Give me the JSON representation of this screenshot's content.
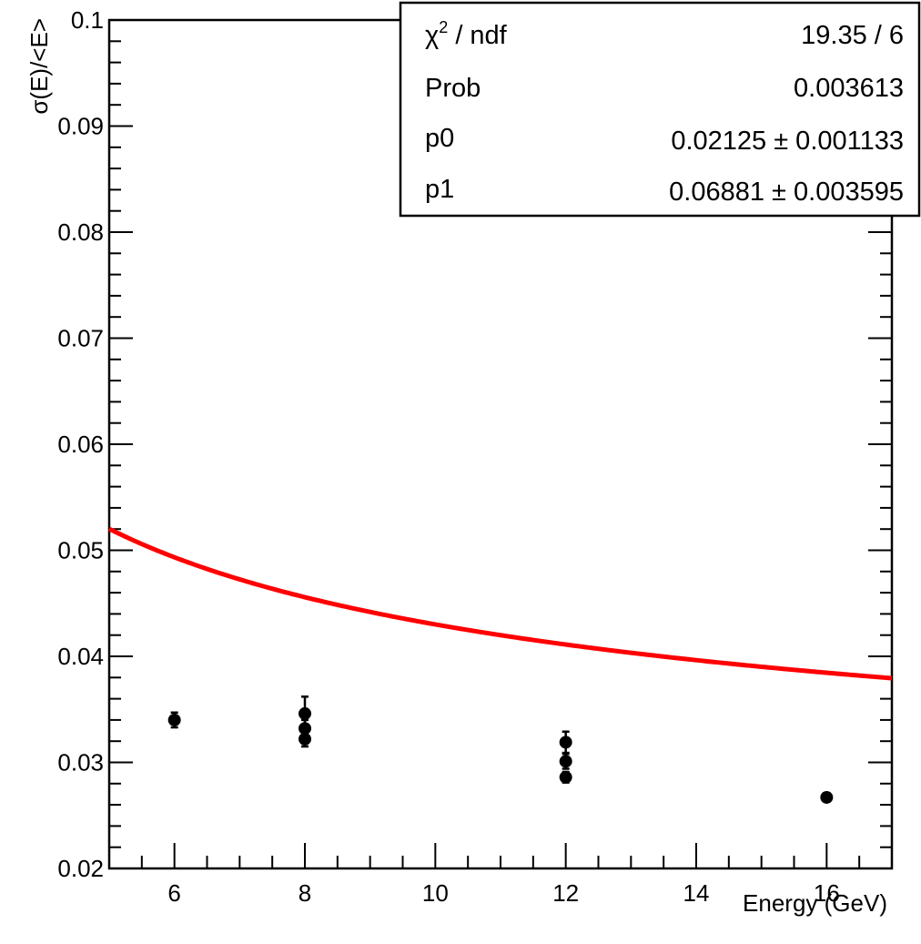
{
  "chart_data": {
    "type": "scatter",
    "title": "",
    "xlabel": "Energy (GeV)",
    "ylabel": "σ(E)/<E>",
    "xlim": [
      5,
      17
    ],
    "ylim": [
      0.02,
      0.1
    ],
    "x_ticks": [
      6,
      8,
      10,
      12,
      14,
      16
    ],
    "x_tick_labels": [
      "6",
      "8",
      "10",
      "12",
      "14",
      "16"
    ],
    "y_ticks": [
      0.02,
      0.03,
      0.04,
      0.05,
      0.06,
      0.07,
      0.08,
      0.09,
      0.1
    ],
    "y_tick_labels": [
      "0.02",
      "0.03",
      "0.04",
      "0.05",
      "0.06",
      "0.07",
      "0.08",
      "0.09",
      "0.1"
    ],
    "grid": false,
    "series": [
      {
        "kind": "points",
        "color": "#000000",
        "points": [
          {
            "x": 6,
            "y": 0.034,
            "err": 0.0007
          },
          {
            "x": 8,
            "y": 0.0346,
            "err": 0.0016
          },
          {
            "x": 8,
            "y": 0.0332,
            "err": 0.0008
          },
          {
            "x": 8,
            "y": 0.0322,
            "err": 0.0007
          },
          {
            "x": 12,
            "y": 0.0319,
            "err": 0.001
          },
          {
            "x": 12,
            "y": 0.0301,
            "err": 0.0007
          },
          {
            "x": 12,
            "y": 0.0286,
            "err": 0.0005
          },
          {
            "x": 16,
            "y": 0.0267,
            "err": 0.0004
          }
        ]
      },
      {
        "kind": "fit",
        "color": "#ff0000",
        "formula": "p0 + p1/sqrt(E)",
        "p0": 0.02125,
        "p1": 0.06881,
        "x_range": [
          5,
          17
        ]
      }
    ],
    "stats_box": {
      "placement": "top-right",
      "rows": [
        {
          "label": "/ ndf",
          "label_prefix": "χ",
          "label_sup": "2",
          "value": "19.35 / 6"
        },
        {
          "label": "Prob",
          "value": "0.003613"
        },
        {
          "label": "p0",
          "value": "0.02125 ± 0.001133"
        },
        {
          "label": "p1",
          "value": "0.06881 ± 0.003595"
        }
      ]
    }
  }
}
